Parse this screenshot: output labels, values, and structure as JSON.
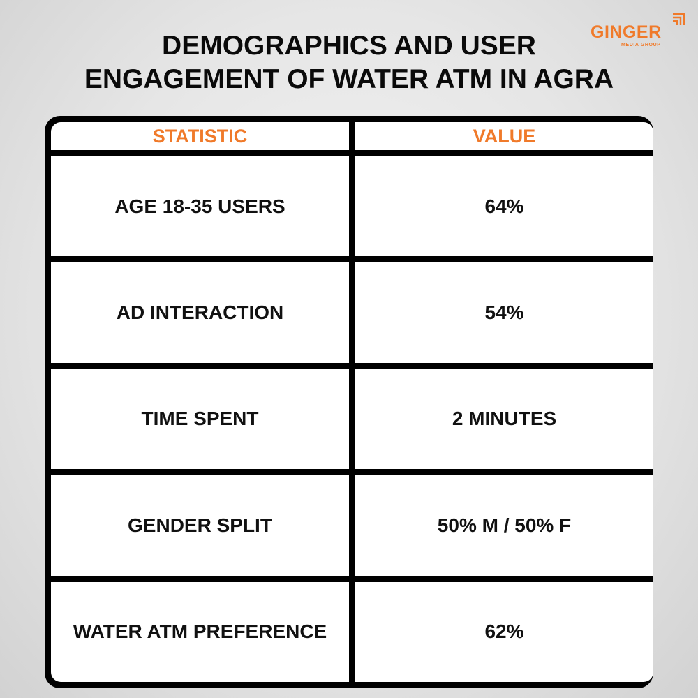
{
  "title_lines": [
    "DEMOGRAPHICS AND USER",
    "ENGAGEMENT OF WATER ATM IN AGRA"
  ],
  "logo": {
    "word": "GINGER",
    "sub": "MEDIA GROUP"
  },
  "colors": {
    "accent": "#f07a2a",
    "border": "#000000",
    "text": "#111111"
  },
  "chart_data": {
    "type": "table",
    "columns": [
      "STATISTIC",
      "VALUE"
    ],
    "rows": [
      [
        "AGE 18-35 USERS",
        "64%"
      ],
      [
        "AD INTERACTION",
        "54%"
      ],
      [
        "TIME SPENT",
        "2 MINUTES"
      ],
      [
        "GENDER SPLIT",
        "50% M / 50% F"
      ],
      [
        "WATER ATM PREFERENCE",
        "62%"
      ]
    ]
  }
}
